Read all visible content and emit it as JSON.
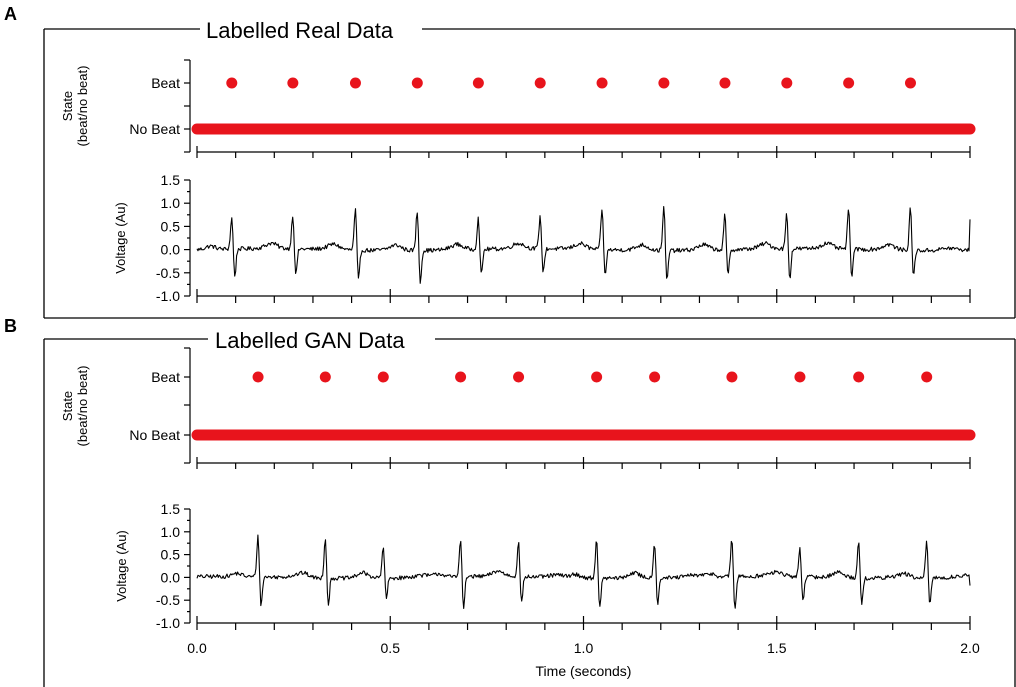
{
  "colors": {
    "state_points": "#e8141c",
    "voltage_trace": "#000000",
    "axes": "#000000",
    "panel_frame": "#000000",
    "background": "#ffffff"
  },
  "chart_data": [
    {
      "panel_label": "A",
      "title": "Labelled Real Data",
      "type": "scatter+line",
      "grid": false,
      "x": {
        "label": "",
        "range": [
          0.0,
          2.0
        ],
        "ticks": [
          0.0,
          0.5,
          1.0,
          1.5,
          2.0
        ],
        "tick_labels": []
      },
      "state": {
        "type": "scatter",
        "ylabel": "State\n(beat/no beat)",
        "categories": [
          "No Beat",
          "Beat"
        ],
        "beat_times": [
          0.09,
          0.248,
          0.41,
          0.57,
          0.728,
          0.888,
          1.048,
          1.208,
          1.366,
          1.526,
          1.686,
          1.846
        ],
        "no_beat_span": [
          0.0,
          2.0
        ]
      },
      "voltage": {
        "type": "line",
        "ylabel": "Voltage (Au)",
        "ylim": [
          -1.0,
          1.5
        ],
        "yticks": [
          "1.5",
          "1.0",
          "0.5",
          "0.0",
          "-0.5",
          "-1.0"
        ],
        "r_peak_times": [
          0.09,
          0.248,
          0.41,
          0.57,
          0.728,
          0.888,
          1.048,
          1.208,
          1.366,
          1.526,
          1.686,
          1.846
        ],
        "r_peak_values": [
          0.7,
          0.76,
          0.9,
          0.88,
          0.7,
          0.72,
          0.92,
          0.96,
          0.78,
          0.78,
          0.88,
          0.93
        ],
        "s_trough_values": [
          -0.62,
          -0.6,
          -0.7,
          -0.72,
          -0.6,
          -0.55,
          -0.6,
          -0.7,
          -0.6,
          -0.68,
          -0.62,
          -0.6
        ],
        "end_value": 0.65
      }
    },
    {
      "panel_label": "B",
      "title": "Labelled GAN Data",
      "type": "scatter+line",
      "grid": false,
      "x": {
        "label": "Time (seconds)",
        "range": [
          0.0,
          2.0
        ],
        "ticks": [
          0.0,
          0.5,
          1.0,
          1.5,
          2.0
        ],
        "tick_labels": [
          "0.0",
          "0.5",
          "1.0",
          "1.5",
          "2.0"
        ]
      },
      "state": {
        "type": "scatter",
        "ylabel": "State\n(beat/no beat)",
        "categories": [
          "No Beat",
          "Beat"
        ],
        "beat_times": [
          0.158,
          0.332,
          0.482,
          0.682,
          0.832,
          1.034,
          1.184,
          1.384,
          1.56,
          1.712,
          1.888
        ],
        "no_beat_span": [
          0.0,
          2.0
        ]
      },
      "voltage": {
        "type": "line",
        "ylabel": "Voltage (Au)",
        "ylim": [
          -1.0,
          1.5
        ],
        "yticks": [
          "1.5",
          "1.0",
          "0.5",
          "0.0",
          "-0.5",
          "-1.0"
        ],
        "r_peak_times": [
          0.158,
          0.332,
          0.482,
          0.682,
          0.832,
          1.034,
          1.184,
          1.384,
          1.56,
          1.712,
          1.888
        ],
        "r_peak_values": [
          0.92,
          0.9,
          0.72,
          0.88,
          0.78,
          0.88,
          0.8,
          0.88,
          0.65,
          0.86,
          0.82
        ],
        "s_trough_values": [
          -0.68,
          -0.62,
          -0.5,
          -0.75,
          -0.62,
          -0.72,
          -0.6,
          -0.78,
          -0.55,
          -0.66,
          -0.62
        ],
        "end_value": -0.18
      }
    }
  ]
}
